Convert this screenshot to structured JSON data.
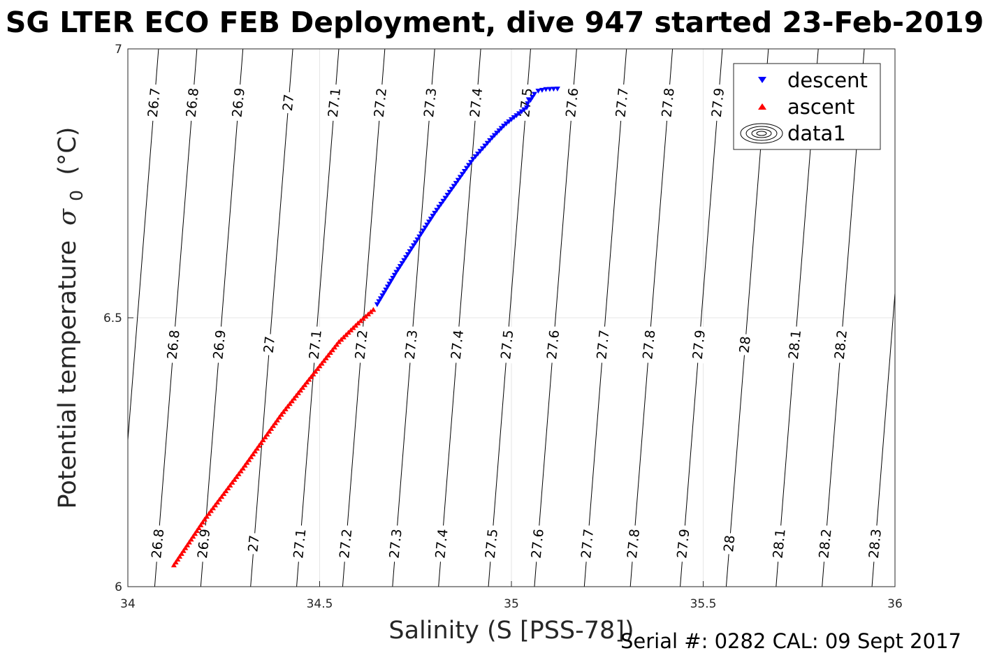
{
  "title": "SG LTER ECO FEB Deployment, dive 947 started 23-Feb-2019",
  "footer": "Serial #: 0282  CAL: 09 Sept 2017",
  "colors": {
    "descent": "#0000ff",
    "ascent": "#ff0000",
    "contour": "#000000",
    "grid": "#e6e6e6",
    "axis": "#262626"
  },
  "chart_data": {
    "type": "scatter",
    "xlabel": "Salinity (S [PSS-78])",
    "ylabel": "Potential temperature",
    "ylabel_symbol": "σ",
    "ylabel_subscript": "0",
    "ylabel_unit": "(°C)",
    "xlim": [
      34,
      36
    ],
    "ylim": [
      6,
      7
    ],
    "xticks": [
      "34",
      "34.5",
      "35",
      "35.5",
      "36"
    ],
    "yticks": [
      "6",
      "6.5",
      "7"
    ],
    "grid": true,
    "legend_position": "top-right",
    "series": [
      {
        "name": "descent",
        "marker": "triangle-down",
        "color": "#0000ff",
        "x": [
          34.65,
          34.7,
          34.75,
          34.8,
          34.85,
          34.9,
          34.95,
          34.98,
          35.0,
          35.02,
          35.04,
          35.045,
          35.05,
          35.06,
          35.07,
          35.09,
          35.12
        ],
        "y": [
          6.525,
          6.585,
          6.64,
          6.695,
          6.745,
          6.795,
          6.835,
          6.857,
          6.869,
          6.88,
          6.891,
          6.906,
          6.905,
          6.916,
          6.922,
          6.925,
          6.926
        ]
      },
      {
        "name": "ascent",
        "marker": "triangle-up",
        "color": "#ff0000",
        "x": [
          34.12,
          34.2,
          34.3,
          34.4,
          34.5,
          34.55,
          34.6,
          34.64
        ],
        "y": [
          6.04,
          6.125,
          6.22,
          6.32,
          6.41,
          6.455,
          6.49,
          6.515
        ]
      },
      {
        "name": "data1",
        "marker": "contour"
      }
    ],
    "contour_lines": [
      {
        "level": "26.7",
        "x_top": 34.08
      },
      {
        "level": "26.8",
        "x_top": 34.18
      },
      {
        "level": "26.9",
        "x_top": 34.3
      },
      {
        "level": "27",
        "x_top": 34.43
      },
      {
        "level": "27.1",
        "x_top": 34.55
      },
      {
        "level": "27.2",
        "x_top": 34.67
      },
      {
        "level": "27.3",
        "x_top": 34.8
      },
      {
        "level": "27.4",
        "x_top": 34.92
      },
      {
        "level": "27.5",
        "x_top": 35.05
      },
      {
        "level": "27.6",
        "x_top": 35.17
      },
      {
        "level": "27.7",
        "x_top": 35.3
      },
      {
        "level": "27.8",
        "x_top": 35.42
      },
      {
        "level": "27.9",
        "x_top": 35.55
      },
      {
        "level": "28",
        "x_top": 35.67
      },
      {
        "level": "28.1",
        "x_top": 35.8
      },
      {
        "level": "28.2",
        "x_top": 35.92
      },
      {
        "level": "28.3",
        "x_top": 36.05
      }
    ],
    "contour_label_rows": [
      {
        "y": 6.9,
        "levels": [
          "26.7",
          "26.8",
          "26.9",
          "27",
          "27.1",
          "27.2",
          "27.3",
          "27.4",
          "27.5",
          "27.6",
          "27.7",
          "27.8",
          "27.9",
          "28",
          "28.1",
          "28.2"
        ]
      },
      {
        "y": 6.45,
        "levels": [
          "26.8",
          "26.9",
          "27",
          "27.1",
          "27.2",
          "27.3",
          "27.4",
          "27.5",
          "27.6",
          "27.7",
          "27.8",
          "27.9",
          "28",
          "28.1",
          "28.2"
        ]
      },
      {
        "y": 6.08,
        "levels": [
          "26.8",
          "26.9",
          "27",
          "27.1",
          "27.2",
          "27.3",
          "27.4",
          "27.5",
          "27.6",
          "27.7",
          "27.8",
          "27.9",
          "28",
          "28.1",
          "28.2",
          "28.3"
        ]
      }
    ]
  }
}
